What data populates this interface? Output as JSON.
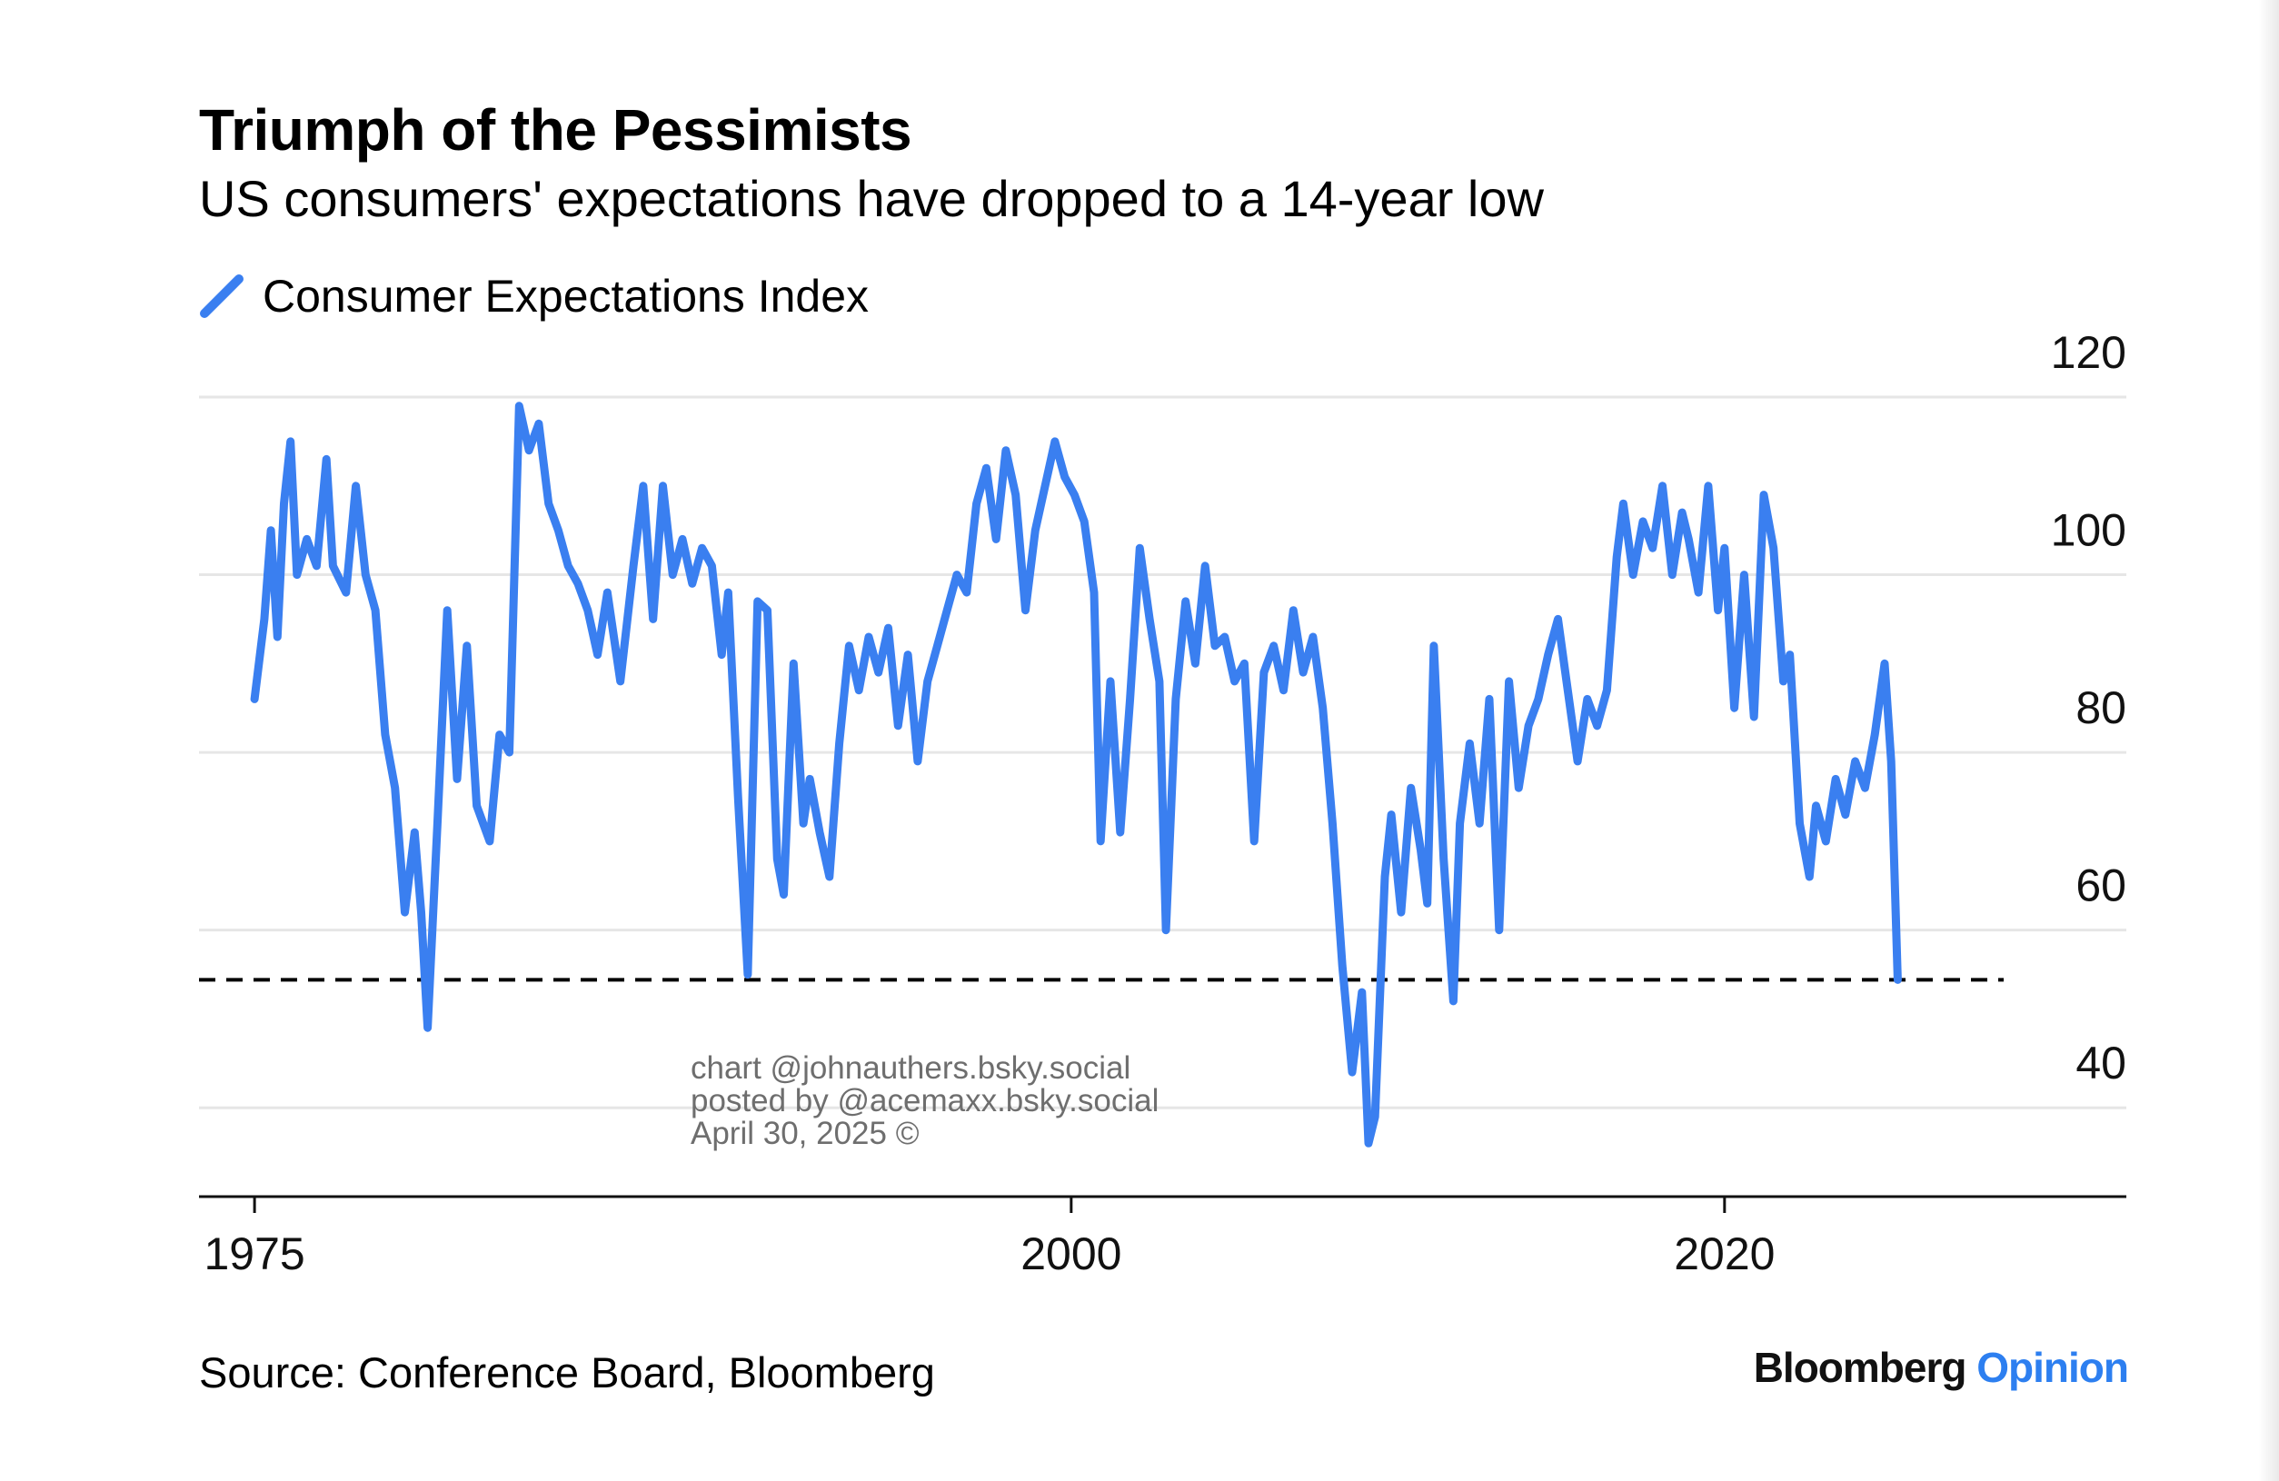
{
  "title": "Triumph of the Pessimists",
  "subtitle": "US consumers' expectations have dropped to a 14-year low",
  "legend": {
    "label": "Consumer Expectations Index",
    "color": "#3a7ff0"
  },
  "watermark": {
    "line1": "chart @johnauthers.bsky.social",
    "line2": "posted by @acemaxx.bsky.social",
    "line3": "April 30, 2025 ©"
  },
  "source": "Source: Conference Board, Bloomberg",
  "brand": {
    "name": "Bloomberg",
    "suffix": "Opinion"
  },
  "chart_data": {
    "type": "line",
    "title": "Triumph of the Pessimists",
    "subtitle": "US consumers' expectations have dropped to a 14-year low",
    "xlabel": "",
    "ylabel": "",
    "xlim": [
      1973.3,
      2032.3
    ],
    "ylim": [
      30,
      120
    ],
    "x_ticks": [
      1975,
      2000,
      2020
    ],
    "y_ticks": [
      40,
      60,
      80,
      100,
      120
    ],
    "y_axis_position": "right",
    "grid": "horizontal",
    "legend_position": "top-left",
    "reference_line": {
      "y": 54.4,
      "style": "dashed",
      "color": "#000000"
    },
    "series": [
      {
        "name": "Consumer Expectations Index",
        "color": "#3a7ff0",
        "points": [
          [
            1975.0,
            86
          ],
          [
            1975.3,
            95
          ],
          [
            1975.5,
            105
          ],
          [
            1975.7,
            93
          ],
          [
            1975.9,
            108
          ],
          [
            1976.1,
            115
          ],
          [
            1976.3,
            100
          ],
          [
            1976.6,
            104
          ],
          [
            1976.9,
            101
          ],
          [
            1977.2,
            113
          ],
          [
            1977.4,
            101
          ],
          [
            1977.8,
            98
          ],
          [
            1978.1,
            110
          ],
          [
            1978.4,
            100
          ],
          [
            1978.7,
            96
          ],
          [
            1979.0,
            82
          ],
          [
            1979.3,
            76
          ],
          [
            1979.6,
            62
          ],
          [
            1979.9,
            71
          ],
          [
            1980.1,
            62
          ],
          [
            1980.3,
            49
          ],
          [
            1980.6,
            72
          ],
          [
            1980.9,
            96
          ],
          [
            1981.2,
            77
          ],
          [
            1981.5,
            92
          ],
          [
            1981.8,
            74
          ],
          [
            1982.2,
            70
          ],
          [
            1982.5,
            82
          ],
          [
            1982.8,
            80
          ],
          [
            1983.1,
            119
          ],
          [
            1983.4,
            114
          ],
          [
            1983.7,
            117
          ],
          [
            1984.0,
            108
          ],
          [
            1984.3,
            105
          ],
          [
            1984.6,
            101
          ],
          [
            1984.9,
            99
          ],
          [
            1985.2,
            96
          ],
          [
            1985.5,
            91
          ],
          [
            1985.8,
            98
          ],
          [
            1986.2,
            88
          ],
          [
            1986.6,
            101
          ],
          [
            1986.9,
            110
          ],
          [
            1987.2,
            95
          ],
          [
            1987.5,
            110
          ],
          [
            1987.8,
            100
          ],
          [
            1988.1,
            104
          ],
          [
            1988.4,
            99
          ],
          [
            1988.7,
            103
          ],
          [
            1989.0,
            101
          ],
          [
            1989.3,
            91
          ],
          [
            1989.5,
            98
          ],
          [
            1989.8,
            75
          ],
          [
            1990.1,
            55
          ],
          [
            1990.4,
            97
          ],
          [
            1990.7,
            96
          ],
          [
            1991.0,
            68
          ],
          [
            1991.2,
            64
          ],
          [
            1991.5,
            90
          ],
          [
            1991.8,
            72
          ],
          [
            1992.0,
            77
          ],
          [
            1992.3,
            71
          ],
          [
            1992.6,
            66
          ],
          [
            1992.9,
            81
          ],
          [
            1993.2,
            92
          ],
          [
            1993.5,
            87
          ],
          [
            1993.8,
            93
          ],
          [
            1994.1,
            89
          ],
          [
            1994.4,
            94
          ],
          [
            1994.7,
            83
          ],
          [
            1995.0,
            91
          ],
          [
            1995.3,
            79
          ],
          [
            1995.6,
            88
          ],
          [
            1995.9,
            92
          ],
          [
            1996.2,
            96
          ],
          [
            1996.5,
            100
          ],
          [
            1996.8,
            98
          ],
          [
            1997.1,
            108
          ],
          [
            1997.4,
            112
          ],
          [
            1997.7,
            104
          ],
          [
            1998.0,
            114
          ],
          [
            1998.3,
            109
          ],
          [
            1998.6,
            96
          ],
          [
            1998.9,
            105
          ],
          [
            1999.2,
            110
          ],
          [
            1999.5,
            115
          ],
          [
            1999.8,
            111
          ],
          [
            2000.1,
            109
          ],
          [
            2000.4,
            106
          ],
          [
            2000.7,
            98
          ],
          [
            2000.9,
            70
          ],
          [
            2001.2,
            88
          ],
          [
            2001.5,
            71
          ],
          [
            2001.8,
            86
          ],
          [
            2002.1,
            103
          ],
          [
            2002.4,
            95
          ],
          [
            2002.7,
            88
          ],
          [
            2002.9,
            60
          ],
          [
            2003.2,
            86
          ],
          [
            2003.5,
            97
          ],
          [
            2003.8,
            90
          ],
          [
            2004.1,
            101
          ],
          [
            2004.4,
            92
          ],
          [
            2004.7,
            93
          ],
          [
            2005.0,
            88
          ],
          [
            2005.3,
            90
          ],
          [
            2005.6,
            70
          ],
          [
            2005.9,
            89
          ],
          [
            2006.2,
            92
          ],
          [
            2006.5,
            87
          ],
          [
            2006.8,
            96
          ],
          [
            2007.1,
            89
          ],
          [
            2007.4,
            93
          ],
          [
            2007.7,
            85
          ],
          [
            2008.0,
            72
          ],
          [
            2008.3,
            56
          ],
          [
            2008.6,
            44
          ],
          [
            2008.9,
            53
          ],
          [
            2009.1,
            36
          ],
          [
            2009.3,
            39
          ],
          [
            2009.6,
            66
          ],
          [
            2009.8,
            73
          ],
          [
            2010.1,
            62
          ],
          [
            2010.4,
            76
          ],
          [
            2010.7,
            69
          ],
          [
            2010.9,
            63
          ],
          [
            2011.1,
            92
          ],
          [
            2011.4,
            68
          ],
          [
            2011.7,
            52
          ],
          [
            2011.9,
            72
          ],
          [
            2012.2,
            81
          ],
          [
            2012.5,
            72
          ],
          [
            2012.8,
            86
          ],
          [
            2013.1,
            60
          ],
          [
            2013.4,
            88
          ],
          [
            2013.7,
            76
          ],
          [
            2014.0,
            83
          ],
          [
            2014.3,
            86
          ],
          [
            2014.6,
            91
          ],
          [
            2014.9,
            95
          ],
          [
            2015.2,
            87
          ],
          [
            2015.5,
            79
          ],
          [
            2015.8,
            86
          ],
          [
            2016.1,
            83
          ],
          [
            2016.4,
            87
          ],
          [
            2016.7,
            102
          ],
          [
            2016.9,
            108
          ],
          [
            2017.2,
            100
          ],
          [
            2017.5,
            106
          ],
          [
            2017.8,
            103
          ],
          [
            2018.1,
            110
          ],
          [
            2018.4,
            100
          ],
          [
            2018.7,
            107
          ],
          [
            2018.9,
            104
          ],
          [
            2019.2,
            98
          ],
          [
            2019.5,
            110
          ],
          [
            2019.8,
            96
          ],
          [
            2020.0,
            103
          ],
          [
            2020.3,
            85
          ],
          [
            2020.6,
            100
          ],
          [
            2020.9,
            84
          ],
          [
            2021.2,
            109
          ],
          [
            2021.5,
            103
          ],
          [
            2021.8,
            88
          ],
          [
            2022.0,
            91
          ],
          [
            2022.3,
            72
          ],
          [
            2022.6,
            66
          ],
          [
            2022.8,
            74
          ],
          [
            2023.1,
            70
          ],
          [
            2023.4,
            77
          ],
          [
            2023.7,
            73
          ],
          [
            2024.0,
            79
          ],
          [
            2024.3,
            76
          ],
          [
            2024.6,
            82
          ],
          [
            2024.9,
            90
          ],
          [
            2025.1,
            79
          ],
          [
            2025.3,
            54.4
          ]
        ]
      }
    ]
  }
}
